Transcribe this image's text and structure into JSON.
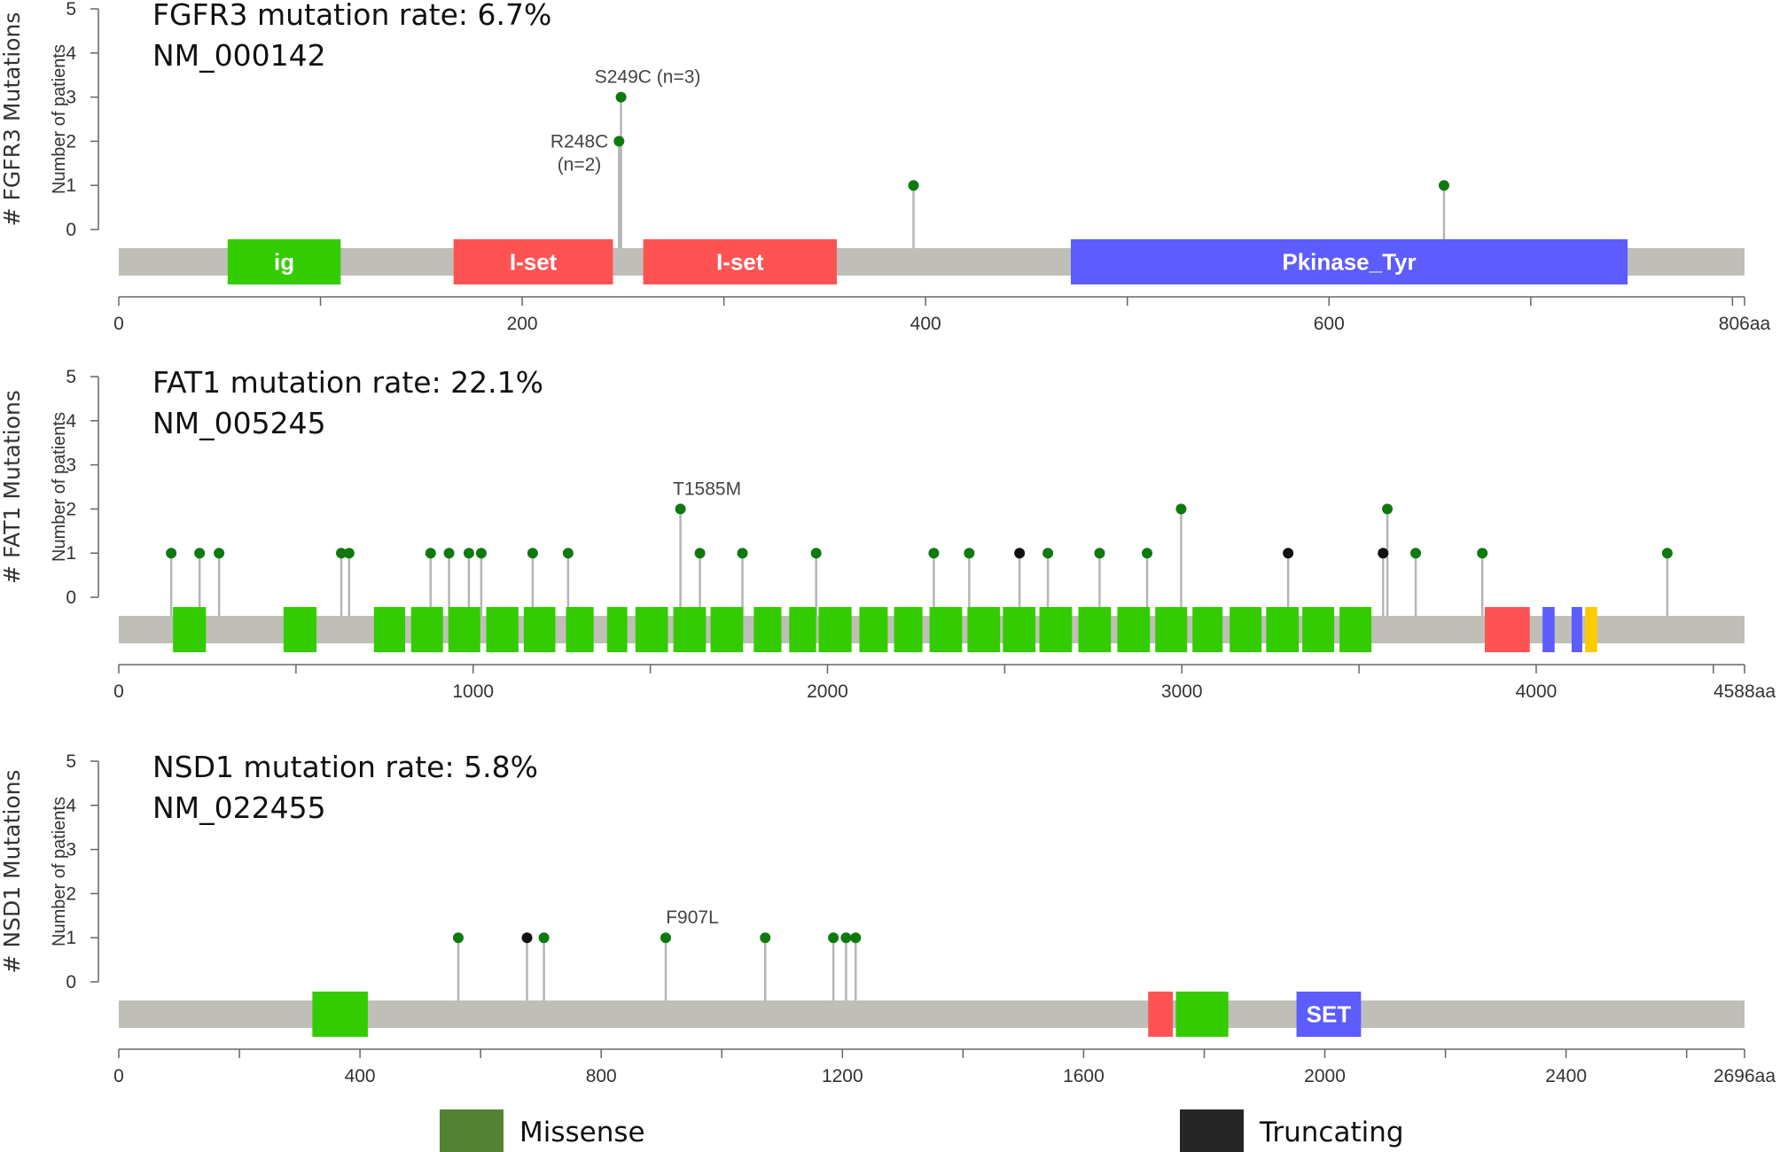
{
  "colors": {
    "missense": "#0e7a0e",
    "truncating": "#111111",
    "protein_bar": "#bfbfb8",
    "stem": "#b5b5b5",
    "axis": "#666666",
    "legend_missense": "#548235",
    "legend_truncating": "#262626"
  },
  "chart_data": [
    {
      "type": "lollipop",
      "gene": "FGFR3",
      "title": "FGFR3 mutation rate: 6.7%",
      "transcript": "NM_000142",
      "ylabel": "Number of patients",
      "gene_axis_label": "# FGFR3 Mutations",
      "length": 806,
      "length_label": "806aa",
      "ylim": [
        0,
        5
      ],
      "y_ticks": [
        "0",
        "1",
        "2",
        "3",
        "4",
        "5"
      ],
      "x_ticks": [
        0,
        200,
        400,
        600
      ],
      "x_tick_labels": [
        "0",
        "200",
        "400",
        "600"
      ],
      "minor_step": 100,
      "domains": [
        {
          "label": "ig",
          "start": 54,
          "end": 110,
          "color": "#33cc00"
        },
        {
          "label": "I-set",
          "start": 166,
          "end": 245,
          "color": "#ff5353"
        },
        {
          "label": "I-set",
          "start": 260,
          "end": 356,
          "color": "#ff5353"
        },
        {
          "label": "Pkinase_Tyr",
          "start": 472,
          "end": 748,
          "color": "#5c5cff"
        }
      ],
      "mutations": [
        {
          "pos": 248,
          "count": 2,
          "type": "missense",
          "label": "R248C",
          "label2": "(n=2)"
        },
        {
          "pos": 249,
          "count": 3,
          "type": "missense",
          "label": "S249C (n=3)"
        },
        {
          "pos": 394,
          "count": 1,
          "type": "missense"
        },
        {
          "pos": 657,
          "count": 1,
          "type": "missense"
        }
      ]
    },
    {
      "type": "lollipop",
      "gene": "FAT1",
      "title": "FAT1 mutation rate: 22.1%",
      "transcript": "NM_005245",
      "ylabel": "Number of patients",
      "gene_axis_label": "# FAT1 Mutations",
      "length": 4588,
      "length_label": "4588aa",
      "ylim": [
        0,
        5
      ],
      "y_ticks": [
        "0",
        "1",
        "2",
        "3",
        "4",
        "5"
      ],
      "x_ticks": [
        0,
        1000,
        2000,
        3000,
        4000
      ],
      "x_tick_labels": [
        "0",
        "1000",
        "2000",
        "3000",
        "4000"
      ],
      "minor_step": 500,
      "domains": [
        {
          "start": 153,
          "end": 246,
          "color": "#33cc00"
        },
        {
          "start": 465,
          "end": 558,
          "color": "#33cc00"
        },
        {
          "start": 720,
          "end": 808,
          "color": "#33cc00"
        },
        {
          "start": 825,
          "end": 915,
          "color": "#33cc00"
        },
        {
          "start": 930,
          "end": 1020,
          "color": "#33cc00"
        },
        {
          "start": 1037,
          "end": 1128,
          "color": "#33cc00"
        },
        {
          "start": 1143,
          "end": 1232,
          "color": "#33cc00"
        },
        {
          "start": 1262,
          "end": 1340,
          "color": "#33cc00"
        },
        {
          "start": 1378,
          "end": 1435,
          "color": "#33cc00"
        },
        {
          "start": 1458,
          "end": 1550,
          "color": "#33cc00"
        },
        {
          "start": 1565,
          "end": 1657,
          "color": "#33cc00"
        },
        {
          "start": 1670,
          "end": 1762,
          "color": "#33cc00"
        },
        {
          "start": 1792,
          "end": 1870,
          "color": "#33cc00"
        },
        {
          "start": 1892,
          "end": 1968,
          "color": "#33cc00"
        },
        {
          "start": 1975,
          "end": 2068,
          "color": "#33cc00"
        },
        {
          "start": 2090,
          "end": 2170,
          "color": "#33cc00"
        },
        {
          "start": 2188,
          "end": 2268,
          "color": "#33cc00"
        },
        {
          "start": 2288,
          "end": 2380,
          "color": "#33cc00"
        },
        {
          "start": 2395,
          "end": 2487,
          "color": "#33cc00"
        },
        {
          "start": 2495,
          "end": 2587,
          "color": "#33cc00"
        },
        {
          "start": 2598,
          "end": 2690,
          "color": "#33cc00"
        },
        {
          "start": 2708,
          "end": 2800,
          "color": "#33cc00"
        },
        {
          "start": 2818,
          "end": 2910,
          "color": "#33cc00"
        },
        {
          "start": 2925,
          "end": 3015,
          "color": "#33cc00"
        },
        {
          "start": 3030,
          "end": 3115,
          "color": "#33cc00"
        },
        {
          "start": 3135,
          "end": 3225,
          "color": "#33cc00"
        },
        {
          "start": 3238,
          "end": 3330,
          "color": "#33cc00"
        },
        {
          "start": 3340,
          "end": 3430,
          "color": "#33cc00"
        },
        {
          "start": 3445,
          "end": 3535,
          "color": "#33cc00"
        },
        {
          "start": 3855,
          "end": 3982,
          "color": "#ff5353"
        },
        {
          "start": 4018,
          "end": 4052,
          "color": "#5c5cff"
        },
        {
          "start": 4100,
          "end": 4130,
          "color": "#5c5cff"
        },
        {
          "start": 4138,
          "end": 4172,
          "color": "#ffcc00"
        }
      ],
      "mutations": [
        {
          "pos": 148,
          "count": 1,
          "type": "missense"
        },
        {
          "pos": 228,
          "count": 1,
          "type": "missense"
        },
        {
          "pos": 283,
          "count": 1,
          "type": "missense"
        },
        {
          "pos": 628,
          "count": 1,
          "type": "missense"
        },
        {
          "pos": 650,
          "count": 1,
          "type": "missense"
        },
        {
          "pos": 880,
          "count": 1,
          "type": "missense"
        },
        {
          "pos": 932,
          "count": 1,
          "type": "missense"
        },
        {
          "pos": 988,
          "count": 1,
          "type": "missense"
        },
        {
          "pos": 1023,
          "count": 1,
          "type": "missense"
        },
        {
          "pos": 1168,
          "count": 1,
          "type": "missense"
        },
        {
          "pos": 1268,
          "count": 1,
          "type": "missense"
        },
        {
          "pos": 1585,
          "count": 2,
          "type": "missense",
          "label": "T1585M"
        },
        {
          "pos": 1640,
          "count": 1,
          "type": "missense"
        },
        {
          "pos": 1760,
          "count": 1,
          "type": "missense"
        },
        {
          "pos": 1968,
          "count": 1,
          "type": "missense"
        },
        {
          "pos": 2300,
          "count": 1,
          "type": "missense"
        },
        {
          "pos": 2400,
          "count": 1,
          "type": "missense"
        },
        {
          "pos": 2542,
          "count": 1,
          "type": "truncating"
        },
        {
          "pos": 2622,
          "count": 1,
          "type": "missense"
        },
        {
          "pos": 2768,
          "count": 1,
          "type": "missense"
        },
        {
          "pos": 2902,
          "count": 1,
          "type": "missense"
        },
        {
          "pos": 2998,
          "count": 2,
          "type": "missense"
        },
        {
          "pos": 3300,
          "count": 1,
          "type": "truncating"
        },
        {
          "pos": 3568,
          "count": 1,
          "type": "truncating"
        },
        {
          "pos": 3580,
          "count": 2,
          "type": "missense"
        },
        {
          "pos": 3660,
          "count": 1,
          "type": "missense"
        },
        {
          "pos": 3848,
          "count": 1,
          "type": "missense"
        },
        {
          "pos": 4370,
          "count": 1,
          "type": "missense"
        }
      ]
    },
    {
      "type": "lollipop",
      "gene": "NSD1",
      "title": "NSD1 mutation rate: 5.8%",
      "transcript": "NM_022455",
      "ylabel": "Number of patients",
      "gene_axis_label": "# NSD1 Mutations",
      "length": 2696,
      "length_label": "2696aa",
      "ylim": [
        0,
        5
      ],
      "y_ticks": [
        "0",
        "1",
        "2",
        "3",
        "4",
        "5"
      ],
      "x_ticks": [
        0,
        400,
        800,
        1200,
        1600,
        2000,
        2400
      ],
      "x_tick_labels": [
        "0",
        "400",
        "800",
        "1200",
        "1600",
        "2000",
        "2400"
      ],
      "minor_step": 200,
      "domains": [
        {
          "start": 321,
          "end": 413,
          "color": "#33cc00"
        },
        {
          "start": 1707,
          "end": 1748,
          "color": "#ff5353"
        },
        {
          "start": 1753,
          "end": 1840,
          "color": "#33cc00"
        },
        {
          "label": "SET",
          "start": 1953,
          "end": 2060,
          "color": "#5c5cff"
        }
      ],
      "mutations": [
        {
          "pos": 563,
          "count": 1,
          "type": "missense"
        },
        {
          "pos": 677,
          "count": 1,
          "type": "truncating"
        },
        {
          "pos": 705,
          "count": 1,
          "type": "missense"
        },
        {
          "pos": 907,
          "count": 1,
          "type": "missense",
          "label": "F907L"
        },
        {
          "pos": 1072,
          "count": 1,
          "type": "missense"
        },
        {
          "pos": 1185,
          "count": 1,
          "type": "missense"
        },
        {
          "pos": 1206,
          "count": 1,
          "type": "missense"
        },
        {
          "pos": 1222,
          "count": 1,
          "type": "missense"
        }
      ]
    }
  ],
  "legend": [
    {
      "label": "Missense",
      "key": "missense"
    },
    {
      "label": "Truncating",
      "key": "truncating"
    }
  ]
}
